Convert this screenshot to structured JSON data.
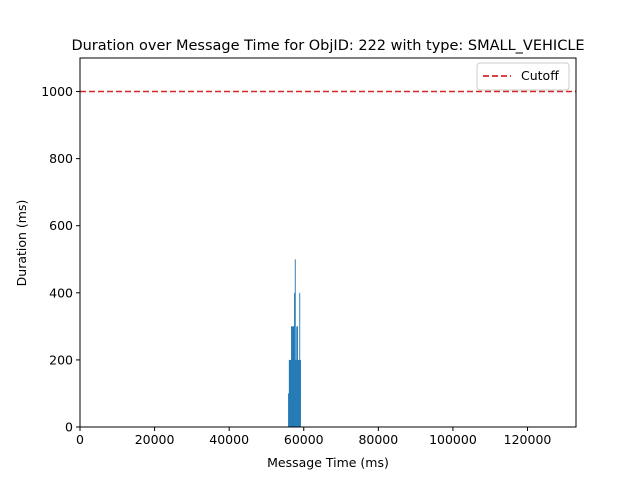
{
  "chart_data": {
    "type": "bar",
    "title": "Duration over Message Time for ObjID: 222 with type: SMALL_VEHICLE",
    "xlabel": "Message Time (ms)",
    "ylabel": "Duration (ms)",
    "xlim": [
      0,
      133000
    ],
    "ylim": [
      0,
      1100
    ],
    "xticks": [
      0,
      20000,
      40000,
      60000,
      80000,
      100000,
      120000
    ],
    "yticks": [
      0,
      200,
      400,
      600,
      800,
      1000
    ],
    "xtick_labels": [
      "0",
      "20000",
      "40000",
      "60000",
      "80000",
      "100000",
      "120000"
    ],
    "ytick_labels": [
      "0",
      "200",
      "400",
      "600",
      "800",
      "1000"
    ],
    "bar_color": "#1f77b4",
    "bar_width": 200,
    "bars": [
      {
        "x": 55900,
        "y": 100
      },
      {
        "x": 56100,
        "y": 200
      },
      {
        "x": 56300,
        "y": 200
      },
      {
        "x": 56500,
        "y": 200
      },
      {
        "x": 56700,
        "y": 300
      },
      {
        "x": 56900,
        "y": 300
      },
      {
        "x": 57100,
        "y": 300
      },
      {
        "x": 57300,
        "y": 300
      },
      {
        "x": 57500,
        "y": 400
      },
      {
        "x": 57700,
        "y": 500
      },
      {
        "x": 57900,
        "y": 200
      },
      {
        "x": 58100,
        "y": 300
      },
      {
        "x": 58300,
        "y": 300
      },
      {
        "x": 58500,
        "y": 200
      },
      {
        "x": 58700,
        "y": 200
      },
      {
        "x": 58900,
        "y": 400
      },
      {
        "x": 59100,
        "y": 200
      }
    ],
    "cutoff": {
      "y": 1000,
      "color": "#d62728",
      "style": "dashed",
      "label": "Cutoff"
    },
    "legend": {
      "placement": "top-right",
      "entries": [
        "Cutoff"
      ]
    },
    "grid": false
  }
}
